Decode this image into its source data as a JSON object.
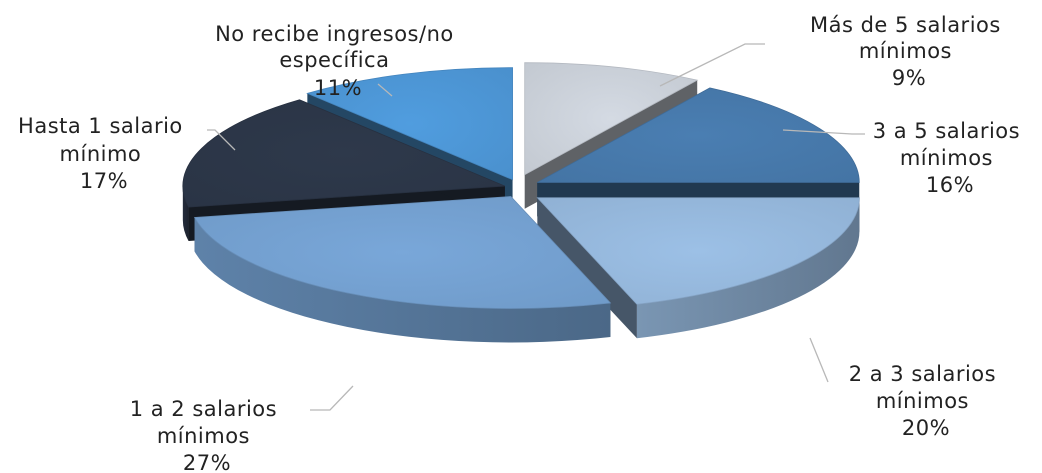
{
  "chart_data": {
    "type": "pie",
    "style": "3d-exploded",
    "slices": [
      {
        "label_lines": [
          "Más de 5 salarios",
          "mínimos"
        ],
        "percent_text": "9%",
        "value": 9,
        "color": "#d4dae3"
      },
      {
        "label_lines": [
          "3 a 5 salarios",
          "mínimos"
        ],
        "percent_text": "16%",
        "value": 16,
        "color": "#4a7eb2"
      },
      {
        "label_lines": [
          "2 a 3 salarios",
          "mínimos"
        ],
        "percent_text": "20%",
        "value": 20,
        "color": "#9cc0e6"
      },
      {
        "label_lines": [
          "1 a 2 salarios",
          "mínimos"
        ],
        "percent_text": "27%",
        "value": 27,
        "color": "#79a7d9"
      },
      {
        "label_lines": [
          "Hasta 1 salario",
          "mínimo"
        ],
        "percent_text": "17%",
        "value": 17,
        "color": "#2e394b"
      },
      {
        "label_lines": [
          "No recibe ingresos/no",
          "específica"
        ],
        "percent_text": "11%",
        "value": 11,
        "color": "#509ddf"
      }
    ]
  }
}
